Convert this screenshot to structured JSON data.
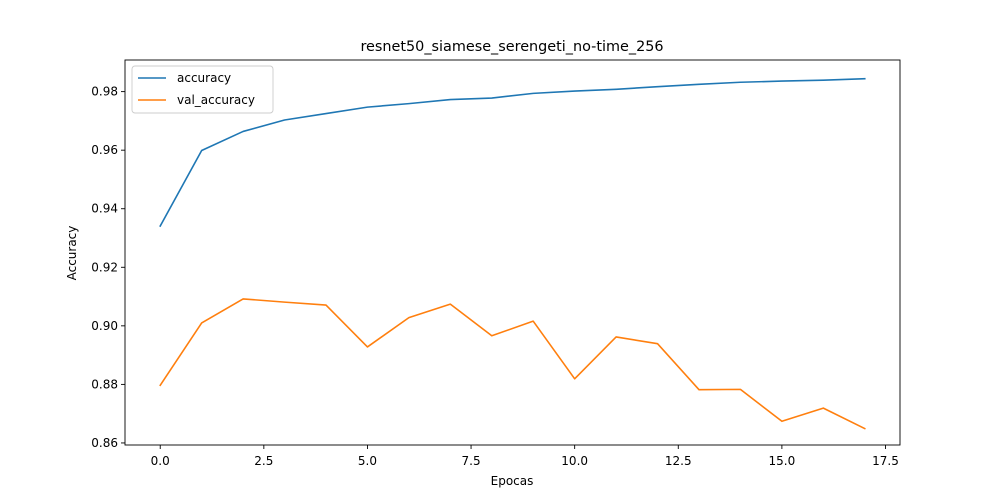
{
  "chart_data": {
    "type": "line",
    "title": "resnet50_siamese_serengeti_no-time_256",
    "xlabel": "Epocas",
    "ylabel": "Accuracy",
    "xlim": [
      -0.85,
      17.85
    ],
    "ylim": [
      0.8593,
      0.9908
    ],
    "x_ticks": [
      0.0,
      2.5,
      5.0,
      7.5,
      10.0,
      12.5,
      15.0,
      17.5
    ],
    "x_tick_labels": [
      "0.0",
      "2.5",
      "5.0",
      "7.5",
      "10.0",
      "12.5",
      "15.0",
      "17.5"
    ],
    "y_ticks": [
      0.86,
      0.88,
      0.9,
      0.92,
      0.94,
      0.96,
      0.98
    ],
    "y_tick_labels": [
      "0.86",
      "0.88",
      "0.90",
      "0.92",
      "0.94",
      "0.96",
      "0.98"
    ],
    "legend_position": "top-left",
    "grid": false,
    "x": [
      0,
      1,
      2,
      3,
      4,
      5,
      6,
      7,
      8,
      9,
      10,
      11,
      12,
      13,
      14,
      15,
      16,
      17
    ],
    "series": [
      {
        "name": "accuracy",
        "color": "#1f77b4",
        "values": [
          0.9341,
          0.9599,
          0.9664,
          0.9703,
          0.9725,
          0.9747,
          0.9759,
          0.9773,
          0.9778,
          0.9794,
          0.9802,
          0.9808,
          0.9817,
          0.9825,
          0.9832,
          0.9836,
          0.9839,
          0.9844
        ]
      },
      {
        "name": "val_accuracy",
        "color": "#ff7f0e",
        "values": [
          0.8797,
          0.901,
          0.9092,
          0.9081,
          0.9071,
          0.8928,
          0.9028,
          0.9074,
          0.8966,
          0.9016,
          0.8819,
          0.8962,
          0.8939,
          0.8782,
          0.8783,
          0.8674,
          0.8719,
          0.8649
        ]
      }
    ]
  }
}
